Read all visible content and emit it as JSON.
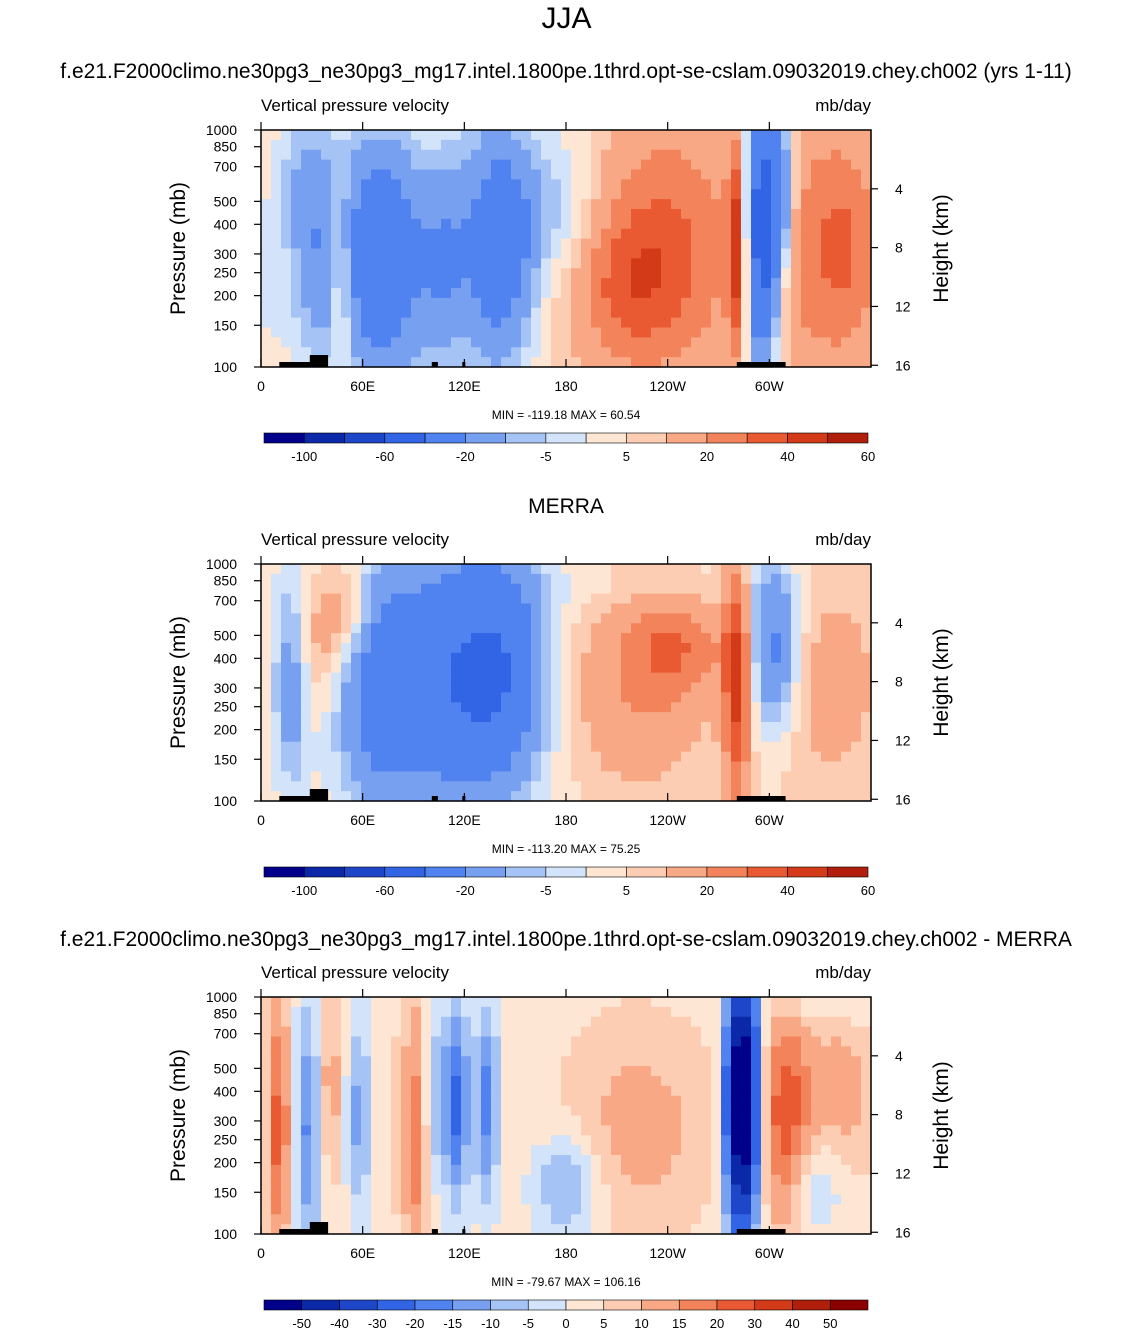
{
  "figure": {
    "title": "JJA"
  },
  "chart_data": [
    {
      "type": "heatmap",
      "title": "f.e21.F2000climo.ne30pg3_ne30pg3_mg17.intel.1800pe.1thrd.opt-se-cslam.09032019.chey.ch002 (yrs 1-11)",
      "left_label": "Vertical pressure velocity",
      "right_label": "mb/day",
      "ylabel": "Pressure (mb)",
      "y2label": "Height (km)",
      "xticks": [
        "0",
        "60E",
        "120E",
        "180",
        "120W",
        "60W"
      ],
      "yticks": [
        "100",
        "150",
        "200",
        "250",
        "300",
        "400",
        "500",
        "700",
        "850",
        "1000"
      ],
      "y2ticks": [
        "4",
        "8",
        "12",
        "16"
      ],
      "stats": "MIN = -119.18  MAX =  60.54",
      "colorbar_labels": [
        "-100",
        "-60",
        "-20",
        "-5",
        "5",
        "20",
        "40",
        "60"
      ],
      "colorbar_levels": [
        -120,
        -100,
        -80,
        -60,
        -40,
        -20,
        -10,
        -5,
        0,
        5,
        10,
        20,
        30,
        40,
        50,
        60
      ]
    },
    {
      "type": "heatmap",
      "title": "MERRA",
      "left_label": "Vertical pressure velocity",
      "right_label": "mb/day",
      "ylabel": "Pressure (mb)",
      "y2label": "Height (km)",
      "xticks": [
        "0",
        "60E",
        "120E",
        "180",
        "120W",
        "60W"
      ],
      "yticks": [
        "100",
        "150",
        "200",
        "250",
        "300",
        "400",
        "500",
        "700",
        "850",
        "1000"
      ],
      "y2ticks": [
        "4",
        "8",
        "12",
        "16"
      ],
      "stats": "MIN = -113.20  MAX =  75.25",
      "colorbar_labels": [
        "-100",
        "-60",
        "-20",
        "-5",
        "5",
        "20",
        "40",
        "60"
      ],
      "colorbar_levels": [
        -120,
        -100,
        -80,
        -60,
        -40,
        -20,
        -10,
        -5,
        0,
        5,
        10,
        20,
        30,
        40,
        50,
        60
      ]
    },
    {
      "type": "heatmap",
      "title": "f.e21.F2000climo.ne30pg3_ne30pg3_mg17.intel.1800pe.1thrd.opt-se-cslam.09032019.chey.ch002 - MERRA",
      "left_label": "Vertical pressure velocity",
      "right_label": "mb/day",
      "ylabel": "Pressure (mb)",
      "y2label": "Height (km)",
      "xticks": [
        "0",
        "60E",
        "120E",
        "180",
        "120W",
        "60W"
      ],
      "yticks": [
        "100",
        "150",
        "200",
        "250",
        "300",
        "400",
        "500",
        "700",
        "850",
        "1000"
      ],
      "y2ticks": [
        "4",
        "8",
        "12",
        "16"
      ],
      "stats": "MIN = -79.67  MAX = 106.16",
      "colorbar_labels": [
        "-50",
        "-40",
        "-30",
        "-20",
        "-15",
        "-10",
        "-5",
        "0",
        "5",
        "10",
        "15",
        "20",
        "30",
        "40",
        "50"
      ],
      "colorbar_levels": [
        -60,
        -50,
        -40,
        -30,
        -20,
        -15,
        -10,
        -5,
        0,
        5,
        10,
        15,
        20,
        30,
        40,
        50,
        60
      ]
    }
  ],
  "colors": {
    "colorbar": [
      "#00008b",
      "#0a28a8",
      "#1e46c8",
      "#3264e6",
      "#5082f0",
      "#78a0f0",
      "#a5c3f5",
      "#d2e3fa",
      "#fde6d4",
      "#fccdb2",
      "#f8a885",
      "#f3835a",
      "#ea5a32",
      "#d23a18",
      "#b01e0c",
      "#8b0000"
    ],
    "topo": "#000000"
  }
}
